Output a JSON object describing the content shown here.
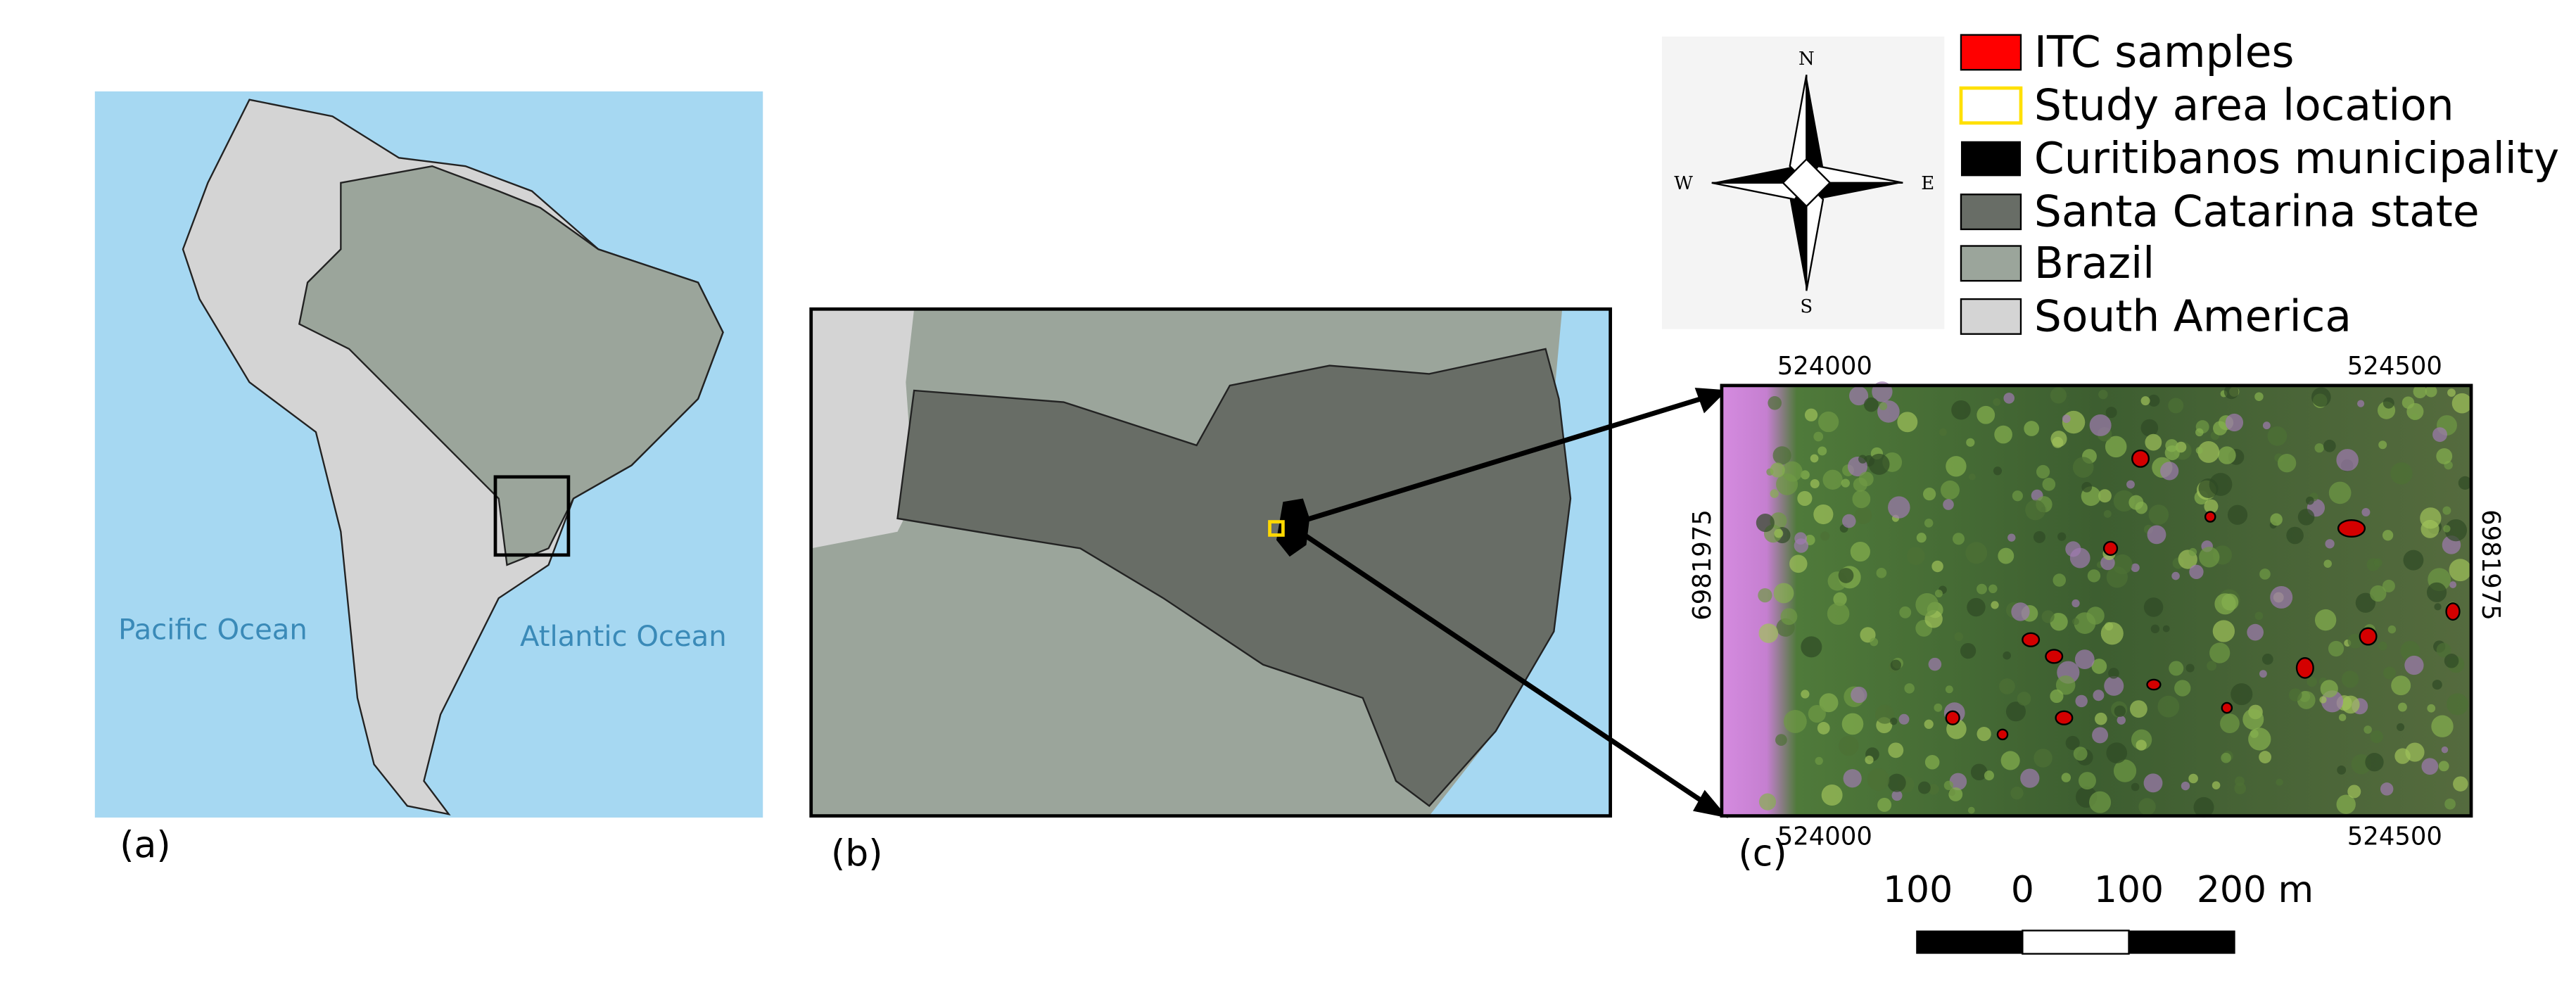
{
  "panel_a": {
    "label": "(a)",
    "oceans": [
      "Pacific Ocean",
      "Atlantic Ocean"
    ]
  },
  "panel_b": {
    "label": "(b)"
  },
  "panel_c": {
    "label": "(c)",
    "top_coords": [
      "524000",
      "524500"
    ],
    "bottom_coords": [
      "524000",
      "524500"
    ],
    "left_coord": "6981975",
    "right_coord": "6981975"
  },
  "compass": {
    "north": "N",
    "south": "S",
    "east": "E",
    "west": "W"
  },
  "legend": [
    {
      "label": "ITC samples"
    },
    {
      "label": "Study area location"
    },
    {
      "label": "Curitibanos municipality"
    },
    {
      "label": "Santa Catarina state"
    },
    {
      "label": "Brazil"
    },
    {
      "label": "South America"
    }
  ],
  "scale_bar": {
    "labels": [
      "100",
      "0",
      "100",
      "200 m"
    ]
  }
}
